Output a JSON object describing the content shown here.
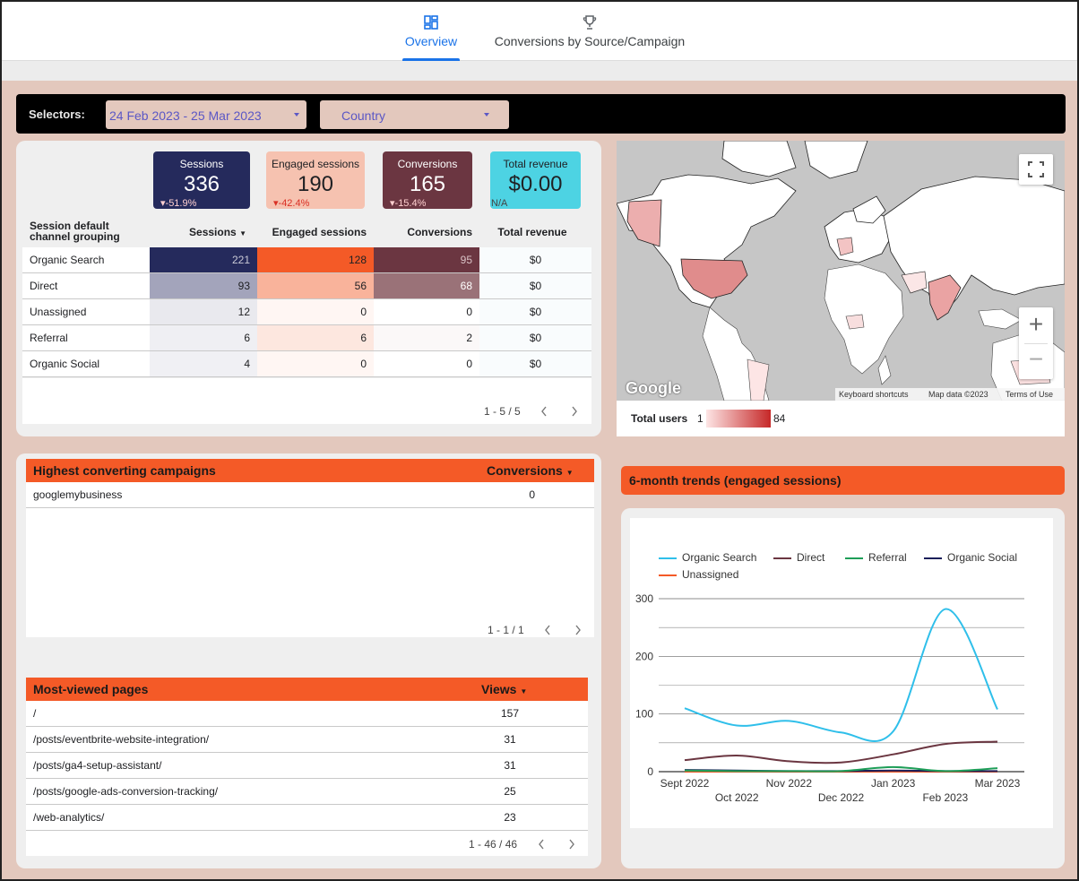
{
  "tabs": [
    {
      "label": "Overview",
      "icon": "dashboard-icon",
      "active": true
    },
    {
      "label": "Conversions by Source/Campaign",
      "icon": "trophy-icon",
      "active": false
    }
  ],
  "selectors": {
    "label": "Selectors:",
    "date_range": "24 Feb 2023 - 25 Mar 2023",
    "country": "Country"
  },
  "kpis": [
    {
      "title": "Sessions",
      "value": "336",
      "delta": "-51.9%",
      "bg": "#252a5c",
      "fg": "#ffffff",
      "delta_color": "#ffd0d0"
    },
    {
      "title": "Engaged sessions",
      "value": "190",
      "delta": "-42.4%",
      "bg": "#f6c2b0",
      "fg": "#202124",
      "delta_color": "#d93025"
    },
    {
      "title": "Conversions",
      "value": "165",
      "delta": "-15.4%",
      "bg": "#6b3641",
      "fg": "#ffffff",
      "delta_color": "#ffd0d0"
    },
    {
      "title": "Total revenue",
      "value": "$0.00",
      "delta": "N/A",
      "bg": "#4dd3e3",
      "fg": "#202124",
      "delta_color": "#444444"
    }
  ],
  "channel_table": {
    "headers": [
      "Session default channel grouping",
      "Sessions",
      "Engaged sessions",
      "Conversions",
      "Total revenue"
    ],
    "rows": [
      {
        "channel": "Organic Search",
        "sessions": "221",
        "engaged": "128",
        "conversions": "95",
        "revenue": "$0",
        "s_bg": "#252a5c",
        "s_fg": "#c9c9d6",
        "e_bg": "#f45a27",
        "e_fg": "#202124",
        "c_bg": "#6b3641",
        "c_fg": "#d9c2c6"
      },
      {
        "channel": "Direct",
        "sessions": "93",
        "engaged": "56",
        "conversions": "68",
        "revenue": "$0",
        "s_bg": "#a3a4bb",
        "s_fg": "#202124",
        "e_bg": "#f9b39b",
        "e_fg": "#202124",
        "c_bg": "#9a7278",
        "c_fg": "#ffffff"
      },
      {
        "channel": "Unassigned",
        "sessions": "12",
        "engaged": "0",
        "conversions": "0",
        "revenue": "$0",
        "s_bg": "#e9e9ee",
        "s_fg": "#202124",
        "e_bg": "#fff6f3",
        "e_fg": "#202124",
        "c_bg": "#ffffff",
        "c_fg": "#202124"
      },
      {
        "channel": "Referral",
        "sessions": "6",
        "engaged": "6",
        "conversions": "2",
        "revenue": "$0",
        "s_bg": "#efeff3",
        "s_fg": "#202124",
        "e_bg": "#fde7df",
        "e_fg": "#202124",
        "c_bg": "#fbf8f8",
        "c_fg": "#202124"
      },
      {
        "channel": "Organic Social",
        "sessions": "4",
        "engaged": "0",
        "conversions": "0",
        "revenue": "$0",
        "s_bg": "#f0f0f4",
        "s_fg": "#202124",
        "e_bg": "#fff6f3",
        "e_fg": "#202124",
        "c_bg": "#ffffff",
        "c_fg": "#202124"
      }
    ],
    "pager": "1 - 5 / 5"
  },
  "map": {
    "logo": "Google",
    "attribution": [
      "Keyboard shortcuts",
      "Map data ©2023",
      "Terms of Use"
    ],
    "legend_label": "Total users",
    "legend_min": "1",
    "legend_max": "84"
  },
  "campaigns": {
    "title": "Highest converting campaigns",
    "metric": "Conversions",
    "rows": [
      {
        "name": "googlemybusiness",
        "value": "0"
      }
    ],
    "pager": "1 - 1 / 1"
  },
  "pages": {
    "title": "Most-viewed pages",
    "metric": "Views",
    "rows": [
      {
        "name": "/",
        "value": "157"
      },
      {
        "name": "/posts/eventbrite-website-integration/",
        "value": "31"
      },
      {
        "name": "/posts/ga4-setup-assistant/",
        "value": "31"
      },
      {
        "name": "/posts/google-ads-conversion-tracking/",
        "value": "25"
      },
      {
        "name": "/web-analytics/",
        "value": "23"
      }
    ],
    "pager": "1 - 46 / 46"
  },
  "trends": {
    "title": "6-month trends (engaged sessions)"
  },
  "chart_data": {
    "type": "line",
    "title": "",
    "xlabel": "",
    "ylabel": "",
    "x": [
      "Sept 2022",
      "Oct 2022",
      "Nov 2022",
      "Dec 2022",
      "Jan 2023",
      "Feb 2023",
      "Mar 2023"
    ],
    "ylim": [
      0,
      300
    ],
    "yticks": [
      0,
      100,
      200,
      300
    ],
    "grid": true,
    "legend": "top",
    "series": [
      {
        "name": "Organic Search",
        "color": "#2fbfea",
        "values": [
          110,
          80,
          88,
          68,
          70,
          282,
          108
        ]
      },
      {
        "name": "Direct",
        "color": "#6b3641",
        "values": [
          20,
          28,
          18,
          16,
          30,
          48,
          52
        ]
      },
      {
        "name": "Referral",
        "color": "#1e9e58",
        "values": [
          2,
          1,
          1,
          1,
          8,
          1,
          6
        ]
      },
      {
        "name": "Organic Social",
        "color": "#1b1f5a",
        "values": [
          3,
          2,
          1,
          1,
          2,
          1,
          1
        ]
      },
      {
        "name": "Unassigned",
        "color": "#f45a27",
        "values": [
          0,
          0,
          0,
          0,
          0,
          0,
          0
        ]
      }
    ]
  }
}
